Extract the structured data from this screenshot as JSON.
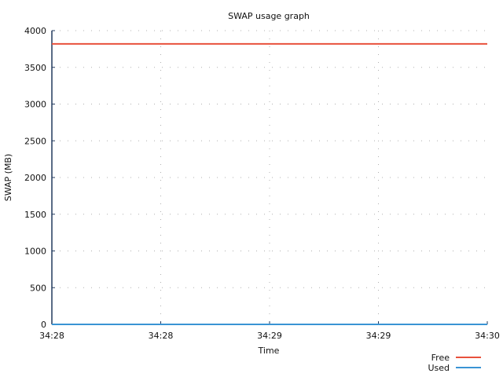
{
  "chart_data": {
    "type": "line",
    "title": "SWAP usage graph",
    "xlabel": "Time",
    "ylabel": "SWAP (MB)",
    "x": [
      "34:28",
      "34:28",
      "34:29",
      "34:29",
      "34:30"
    ],
    "ylim": [
      0,
      4000
    ],
    "yticks": [
      0,
      500,
      1000,
      1500,
      2000,
      2500,
      3000,
      3500,
      4000
    ],
    "grid": true,
    "legend_position": "bottom-right",
    "series": [
      {
        "name": "Free",
        "color": "#e8513c",
        "values": [
          3820,
          3820,
          3820,
          3820,
          3820
        ]
      },
      {
        "name": "Used",
        "color": "#3a94d4",
        "values": [
          0,
          0,
          0,
          0,
          0
        ]
      }
    ]
  }
}
